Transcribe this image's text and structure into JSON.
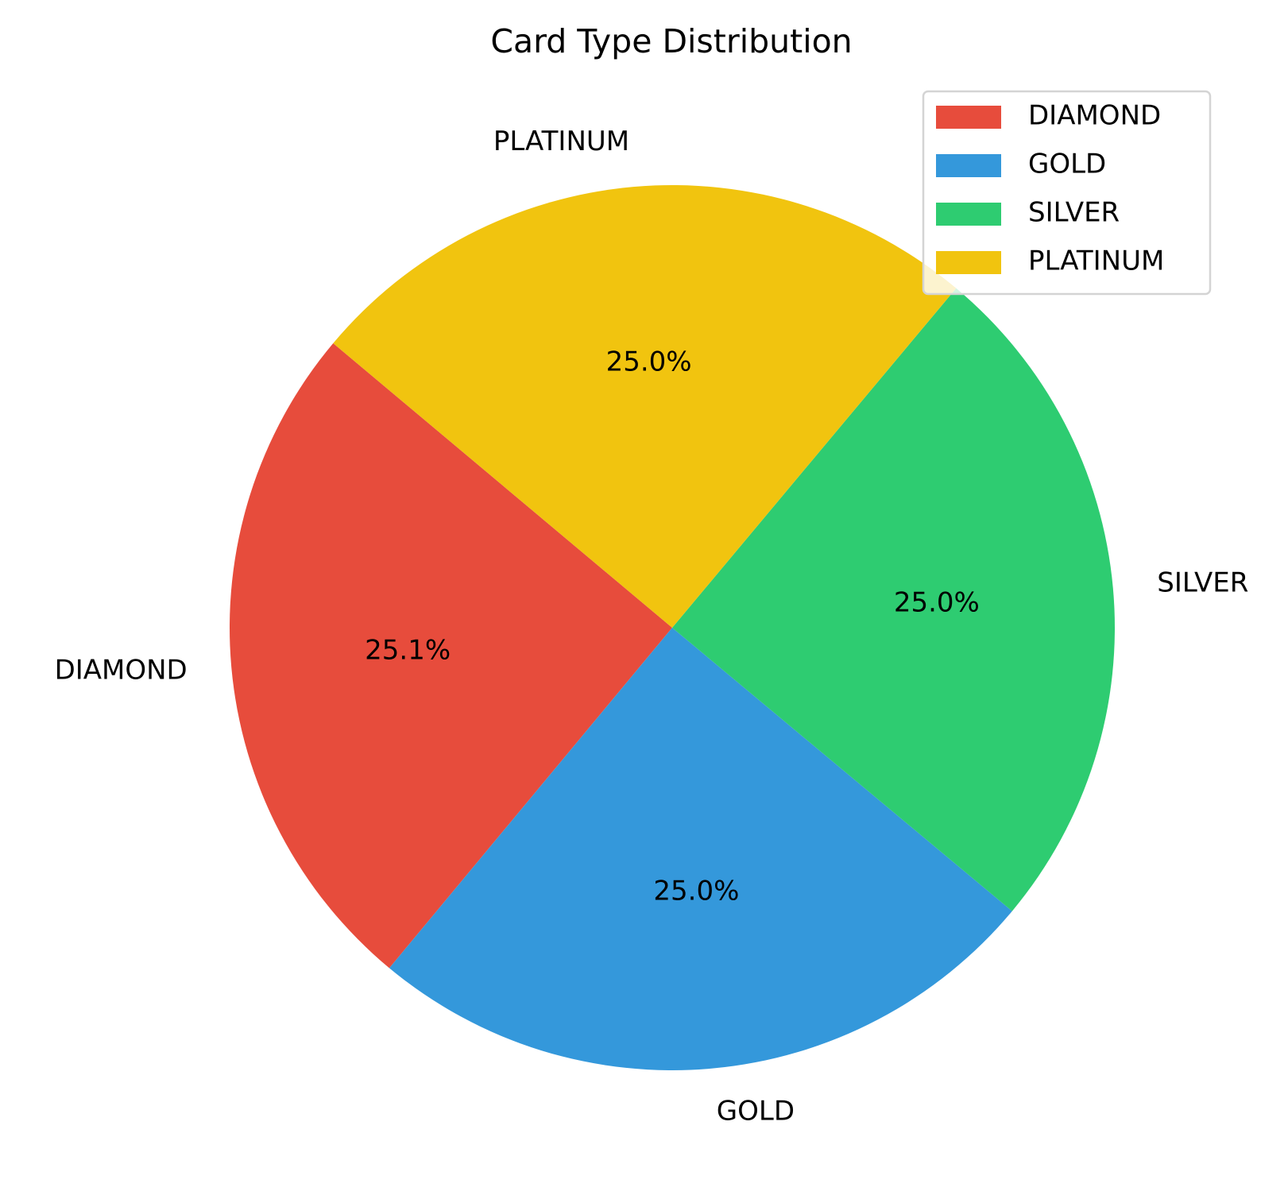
{
  "chart_data": {
    "type": "pie",
    "title": "Card Type Distribution",
    "slices": [
      {
        "label": "DIAMOND",
        "percent": 25.1,
        "pct_label": "25.1%",
        "color": "#e74c3c"
      },
      {
        "label": "GOLD",
        "percent": 25.0,
        "pct_label": "25.0%",
        "color": "#3498db"
      },
      {
        "label": "SILVER",
        "percent": 25.0,
        "pct_label": "25.0%",
        "color": "#2ecc71"
      },
      {
        "label": "PLATINUM",
        "percent": 25.0,
        "pct_label": "25.0%",
        "color": "#f1c40f"
      }
    ],
    "legend": {
      "placement": "top-right",
      "entries": [
        "DIAMOND",
        "GOLD",
        "SILVER",
        "PLATINUM"
      ]
    }
  }
}
